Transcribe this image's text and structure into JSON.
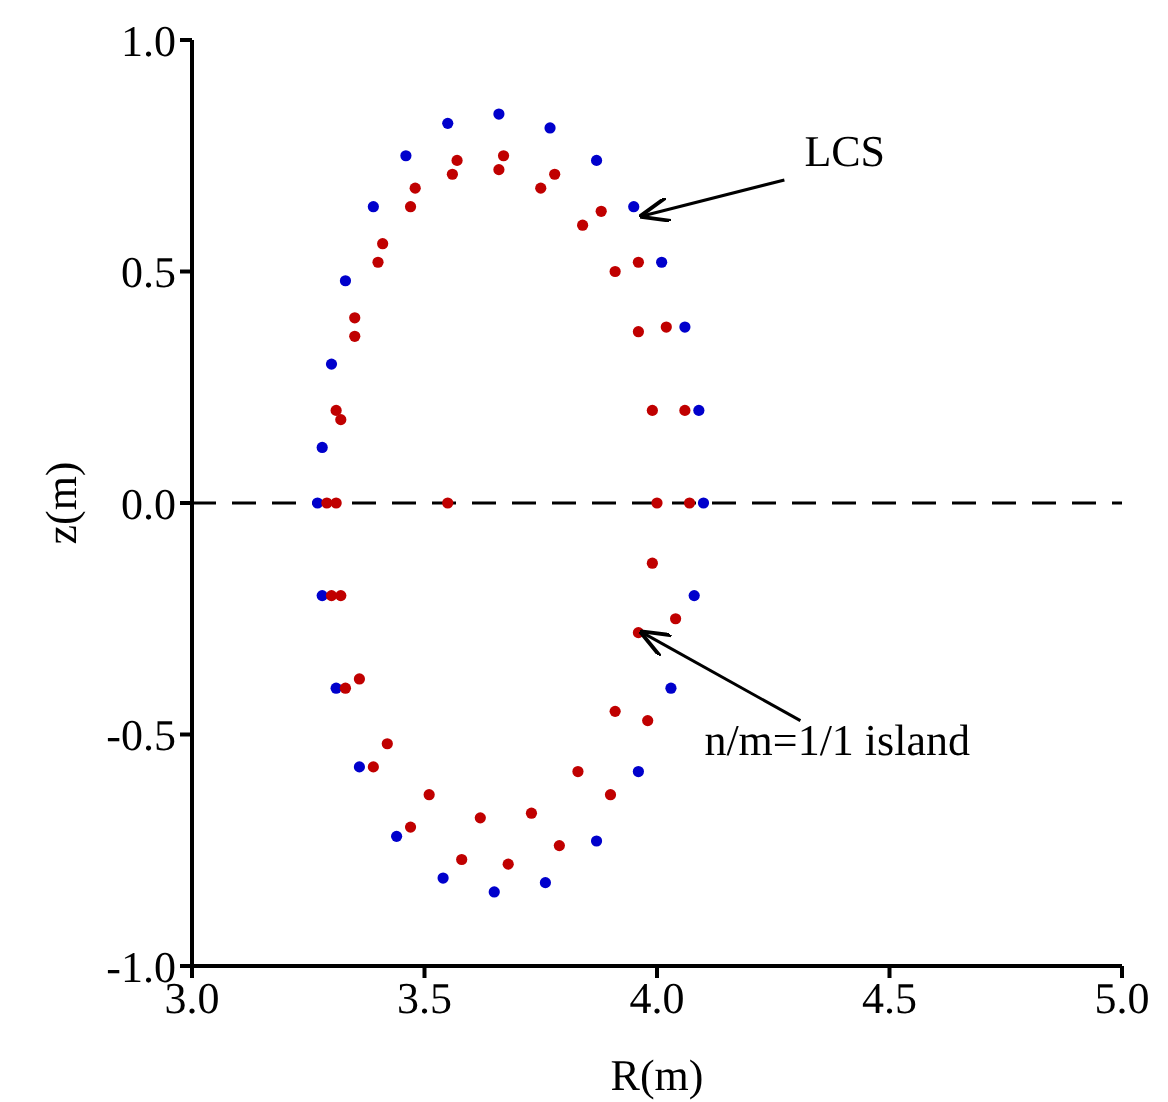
{
  "chart_data": {
    "type": "scatter",
    "xlabel": "R(m)",
    "ylabel": "z(m)",
    "xlim": [
      3.0,
      5.0
    ],
    "xticks": [
      {
        "value": 3.0,
        "label": "3.0"
      },
      {
        "value": 3.5,
        "label": "3.5"
      },
      {
        "value": 4.0,
        "label": "4.0"
      },
      {
        "value": 4.5,
        "label": "4.5"
      },
      {
        "value": 5.0,
        "label": "5.0"
      }
    ],
    "ylim": [
      -1.0,
      1.0
    ],
    "yticks": [
      {
        "value": -1.0,
        "label": "-1.0"
      },
      {
        "value": -0.5,
        "label": "-0.5"
      },
      {
        "value": 0.0,
        "label": "0.0"
      },
      {
        "value": 0.5,
        "label": "0.5"
      },
      {
        "value": 1.0,
        "label": "1.0"
      }
    ],
    "grid": false,
    "marker": "circle",
    "series": [
      {
        "color": "#0000cc",
        "x": [
          4.1,
          4.09,
          4.06,
          4.01,
          3.95,
          3.87,
          3.77,
          3.66,
          3.55,
          3.46,
          3.39,
          3.33,
          3.3,
          3.28,
          3.27,
          3.28,
          3.31,
          3.36,
          3.44,
          3.54,
          3.65,
          3.76,
          3.87,
          3.96,
          4.03,
          4.08
        ],
        "values": [
          0,
          0.2,
          0.38,
          0.52,
          0.64,
          0.74,
          0.81,
          0.84,
          0.82,
          0.75,
          0.64,
          0.48,
          0.3,
          0.12,
          0,
          -0.2,
          -0.4,
          -0.57,
          -0.72,
          -0.81,
          -0.84,
          -0.82,
          -0.73,
          -0.58,
          -0.4,
          -0.2
        ]
      },
      {
        "color": "#c00000",
        "x": [
          4.07,
          4.06,
          4.02,
          3.96,
          3.88,
          3.78,
          3.67,
          3.57,
          3.48,
          3.41,
          3.35,
          3.31,
          3.29,
          3.3,
          3.33,
          3.39,
          3.47,
          3.58,
          3.68,
          3.79,
          3.9,
          3.98,
          4.04,
          4.0,
          3.99,
          3.96,
          3.91,
          3.84,
          3.75,
          3.66,
          3.56,
          3.47,
          3.4,
          3.35,
          3.32,
          3.31,
          3.32,
          3.36,
          3.42,
          3.51,
          3.62,
          3.73,
          3.83,
          3.91,
          3.96,
          3.99,
          3.55
        ],
        "values": [
          0,
          0.2,
          0.38,
          0.52,
          0.63,
          0.71,
          0.75,
          0.74,
          0.68,
          0.56,
          0.4,
          0.2,
          0,
          -0.2,
          -0.4,
          -0.57,
          -0.7,
          -0.77,
          -0.78,
          -0.74,
          -0.63,
          -0.47,
          -0.25,
          0,
          0.2,
          0.37,
          0.5,
          0.6,
          0.68,
          0.72,
          0.71,
          0.64,
          0.52,
          0.36,
          0.18,
          0,
          -0.2,
          -0.38,
          -0.52,
          -0.63,
          -0.68,
          -0.67,
          -0.58,
          -0.45,
          -0.28,
          -0.13,
          0
        ]
      }
    ],
    "ref_lines": [
      {
        "axis": "y",
        "value": 0,
        "color": "#000000",
        "line_style": "dashed"
      }
    ],
    "annotations": [
      {
        "text": "LCS",
        "x": 3.96,
        "y": 0.62
      },
      {
        "text": "n/m=1/1 island",
        "x": 3.96,
        "y": -0.28
      }
    ]
  }
}
